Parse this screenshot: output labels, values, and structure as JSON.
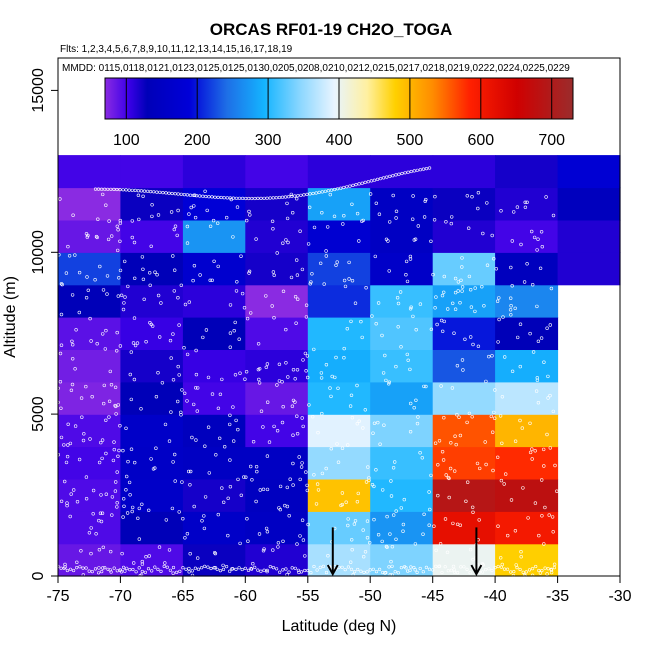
{
  "chart_data": {
    "type": "heatmap",
    "title": "ORCAS RF01-19 CH2O_TOGA",
    "flights_label": "Flts: 1,2,3,4,5,6,7,8,9,10,11,12,13,14,15,16,17,18,19",
    "dates_label": "MMDD: 0115,0118,0121,0123,0125,0125,0130,0205,0208,0210,0212,0215,0217,0218,0219,0222,0224,0225,0229",
    "xlabel": "Latitude (deg N)",
    "ylabel": "Altitude (m)",
    "xlim": [
      -75,
      -30
    ],
    "ylim": [
      0,
      16000
    ],
    "xticks": [
      -75,
      -70,
      -65,
      -60,
      -55,
      -50,
      -45,
      -40,
      -35,
      -30
    ],
    "xtick_labels": [
      "-75",
      "-70",
      "-65",
      "-60",
      "-55",
      "-50",
      "-45",
      "-40",
      "-35",
      "-30"
    ],
    "yticks": [
      0,
      5000,
      10000,
      15000
    ],
    "ytick_labels": [
      "0",
      "5000",
      "10000",
      "15000"
    ],
    "colorbar": {
      "min": 70,
      "max": 730,
      "ticks": [
        100,
        200,
        300,
        400,
        500,
        600,
        700
      ],
      "tick_labels": [
        "100",
        "200",
        "300",
        "400",
        "500",
        "600",
        "700"
      ]
    },
    "lat_bins": [
      -75,
      -70,
      -65,
      -60,
      -55,
      -50,
      -45,
      -40,
      -35
    ],
    "alt_bin_size": 1000,
    "alt_bins_top": 12000,
    "rows_bottom_to_top": [
      [
        85,
        95,
        125,
        115,
        360,
        340,
        400,
        480,
        null
      ],
      [
        95,
        130,
        160,
        150,
        330,
        270,
        620,
        600,
        null
      ],
      [
        95,
        160,
        120,
        145,
        490,
        300,
        690,
        680,
        null
      ],
      [
        100,
        155,
        150,
        150,
        350,
        310,
        570,
        580,
        null
      ],
      [
        95,
        160,
        140,
        100,
        390,
        340,
        560,
        500,
        null
      ],
      [
        75,
        130,
        100,
        85,
        300,
        280,
        350,
        370,
        null
      ],
      [
        80,
        120,
        105,
        110,
        290,
        310,
        230,
        290,
        null
      ],
      [
        90,
        105,
        130,
        95,
        300,
        320,
        200,
        130,
        null
      ],
      [
        130,
        115,
        110,
        70,
        210,
        310,
        280,
        260,
        null
      ],
      [
        220,
        130,
        170,
        120,
        220,
        160,
        330,
        140,
        115
      ],
      [
        85,
        100,
        270,
        115,
        175,
        150,
        115,
        100,
        115
      ],
      [
        70,
        125,
        185,
        120,
        280,
        150,
        125,
        115,
        140
      ],
      [
        100,
        100,
        110,
        100,
        110,
        110,
        110,
        120,
        180
      ]
    ],
    "arrows_lat": [
      -53,
      -41.5
    ]
  }
}
